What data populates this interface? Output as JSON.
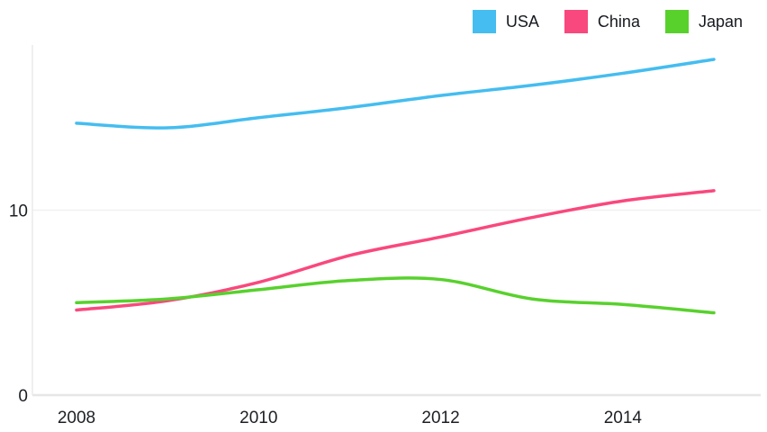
{
  "legend": {
    "position": "top-right",
    "items": [
      {
        "label": "USA",
        "color": "#45BDF0"
      },
      {
        "label": "China",
        "color": "#F9487D"
      },
      {
        "label": "Japan",
        "color": "#58D12D"
      }
    ]
  },
  "axes": {
    "y_tick_labels": [
      "0",
      "10"
    ],
    "x_tick_labels": [
      "2008",
      "2010",
      "2012",
      "2014"
    ]
  },
  "colors": {
    "background": "#ffffff",
    "axis_line": "#eaeaea",
    "gridline": "#f1f1f1",
    "baseline": "#e6e6e6",
    "tick_text": "#1c1f23",
    "legend_text": "#16191f"
  },
  "chart_data": {
    "type": "line",
    "title": "",
    "xlabel": "",
    "ylabel": "",
    "x": [
      2008,
      2009,
      2010,
      2011,
      2012,
      2013,
      2014,
      2015
    ],
    "series": [
      {
        "name": "USA",
        "color": "#45BDF0",
        "values": [
          14.7,
          14.45,
          15.0,
          15.55,
          16.2,
          16.75,
          17.4,
          18.15
        ]
      },
      {
        "name": "China",
        "color": "#F9487D",
        "values": [
          4.6,
          5.1,
          6.1,
          7.55,
          8.55,
          9.6,
          10.5,
          11.05
        ]
      },
      {
        "name": "Japan",
        "color": "#58D12D",
        "values": [
          5.0,
          5.2,
          5.7,
          6.2,
          6.25,
          5.2,
          4.9,
          4.45
        ]
      }
    ],
    "xlim": [
      2008,
      2015
    ],
    "ylim": [
      0,
      19.5
    ],
    "x_ticks": [
      2008,
      2010,
      2012,
      2014
    ],
    "y_ticks": [
      0,
      10
    ],
    "grid": "horizontal",
    "legend_position": "top-right",
    "line_width": 3.5
  }
}
